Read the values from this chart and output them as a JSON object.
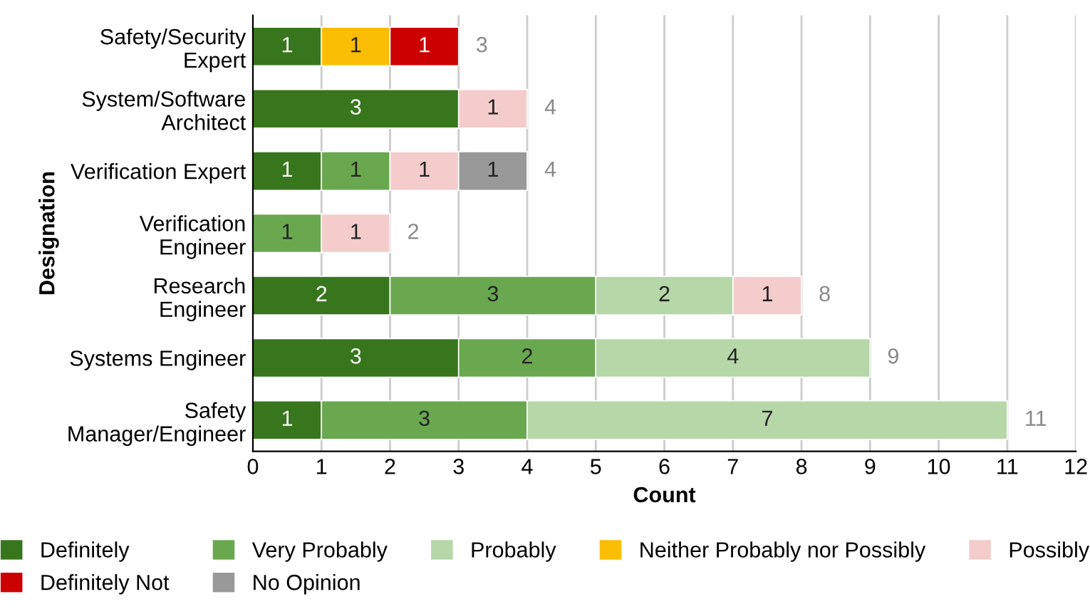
{
  "chart_data": {
    "type": "bar",
    "orientation": "horizontal",
    "stacked": true,
    "xlabel": "Count",
    "ylabel": "Designation",
    "categories": [
      "Safety/Security\nExpert",
      "System/Software\nArchitect",
      "Verification Expert",
      "Verification\nEngineer",
      "Research\nEngineer",
      "Systems Engineer",
      "Safety\nManager/Engineer"
    ],
    "series": [
      {
        "name": "Definitely",
        "color": "#38761d",
        "values": [
          1,
          3,
          1,
          null,
          2,
          3,
          1
        ]
      },
      {
        "name": "Very Probably",
        "color": "#6aa84f",
        "values": [
          null,
          null,
          1,
          1,
          3,
          2,
          3
        ]
      },
      {
        "name": "Probably",
        "color": "#b6d7a8",
        "values": [
          null,
          null,
          null,
          null,
          2,
          4,
          7
        ]
      },
      {
        "name": "Neither Probably nor Possibly",
        "color": "#fbbc04",
        "values": [
          1,
          null,
          null,
          null,
          null,
          null,
          null
        ]
      },
      {
        "name": "Possibly",
        "color": "#f4cccc",
        "values": [
          null,
          1,
          1,
          1,
          1,
          null,
          null
        ]
      },
      {
        "name": "Definitely Not",
        "color": "#cc0000",
        "values": [
          1,
          null,
          null,
          null,
          null,
          null,
          null
        ]
      },
      {
        "name": "No Opinion",
        "color": "#999999",
        "values": [
          null,
          null,
          1,
          null,
          null,
          null,
          null
        ]
      }
    ],
    "totals": [
      "3",
      "4",
      "4",
      "2",
      "8",
      "9",
      "11"
    ],
    "data_labels": true,
    "xlim": [
      0,
      12
    ],
    "xticks": [
      0,
      1,
      2,
      3,
      4,
      5,
      6,
      7,
      8,
      9,
      10,
      11,
      12
    ],
    "grid": "x",
    "legend": "bottom"
  }
}
